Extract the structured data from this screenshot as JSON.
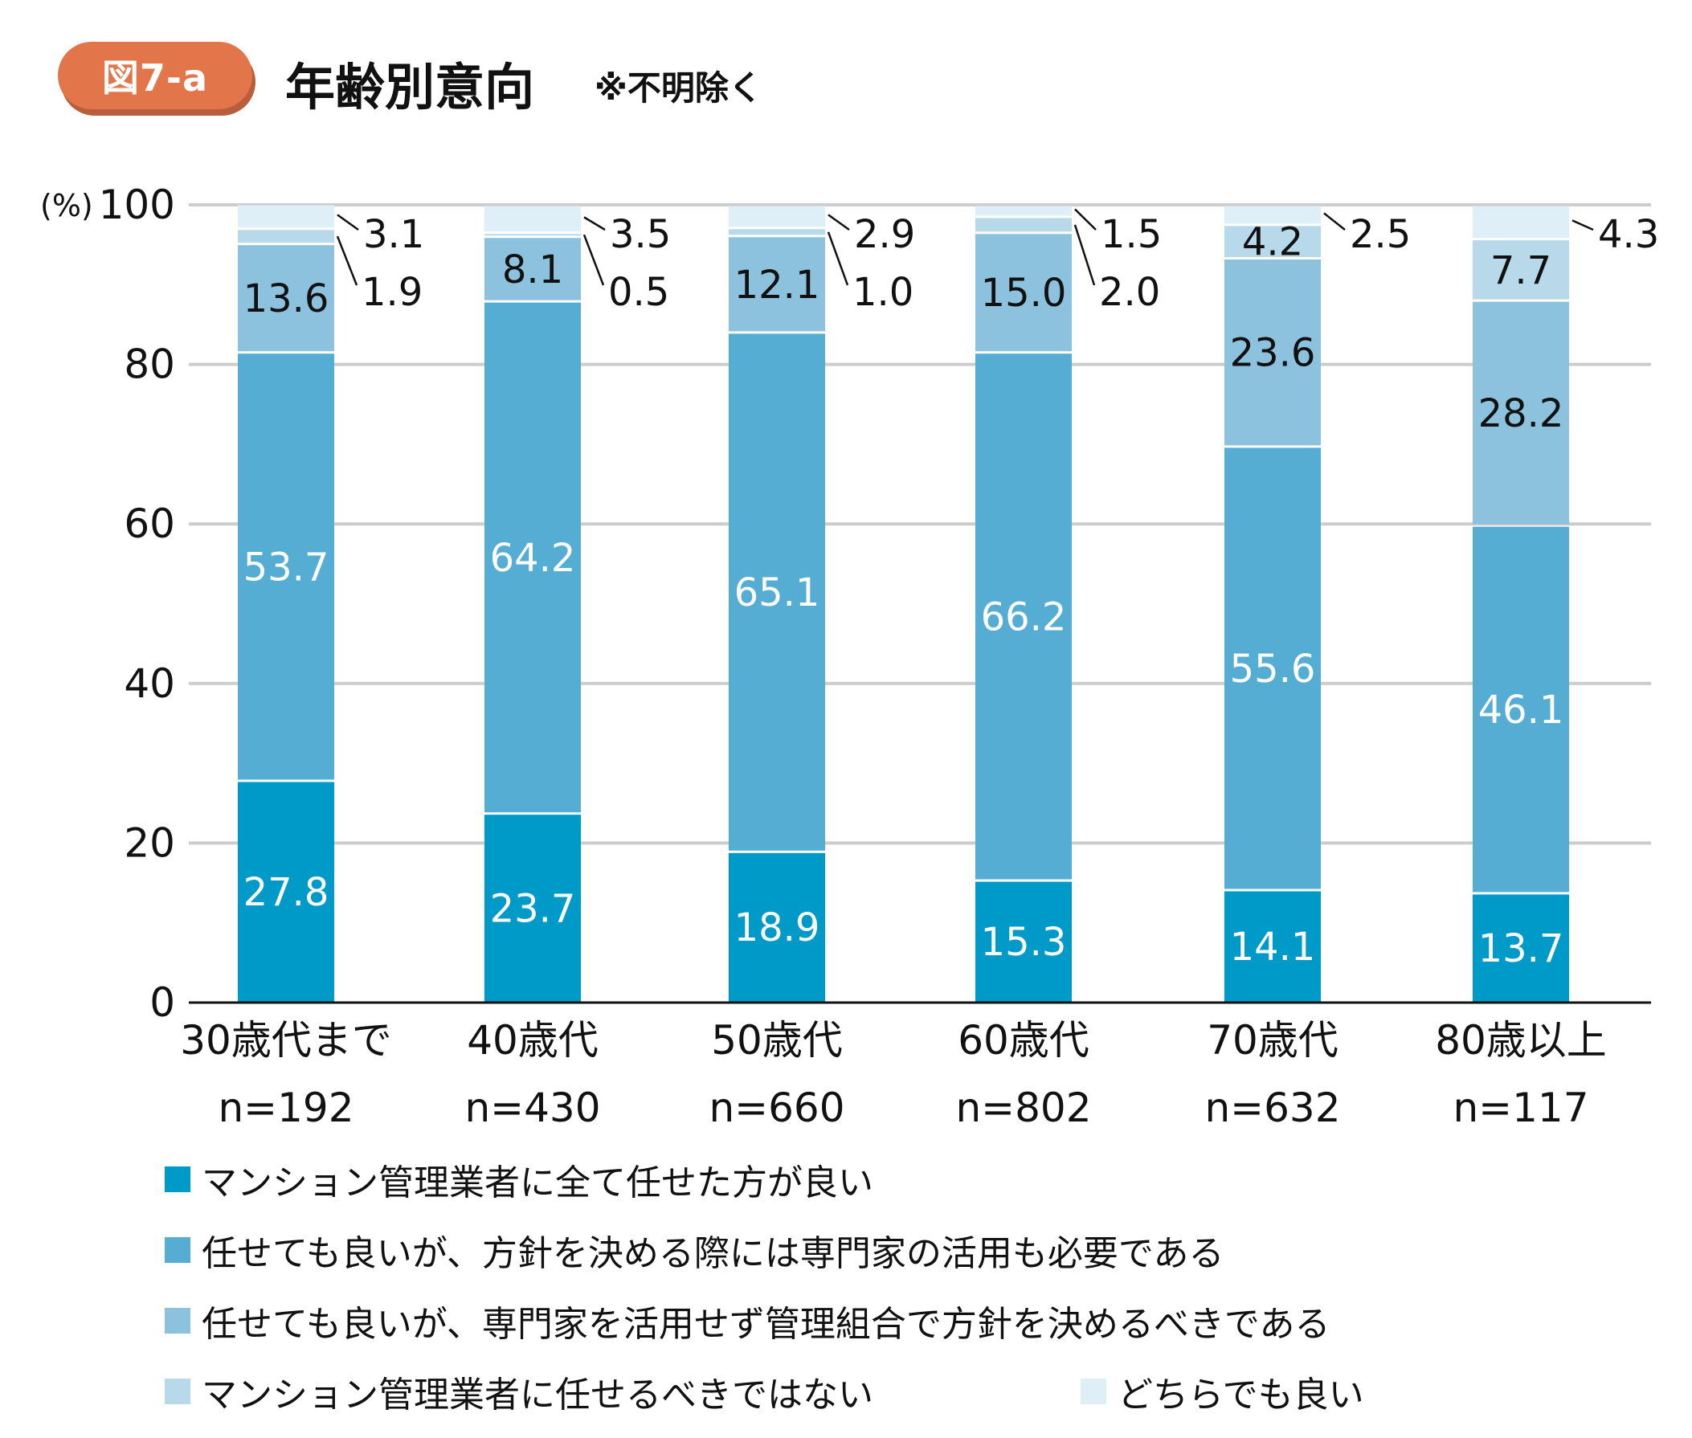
{
  "header": {
    "figure_label": "図7-a",
    "title": "年齢別意向",
    "note": "※不明除く"
  },
  "chart_data": {
    "type": "bar",
    "stacked": true,
    "orientation": "vertical",
    "title": "年齢別意向",
    "ylabel": "(%)",
    "ylim": [
      0,
      100
    ],
    "yticks": [
      0,
      20,
      40,
      60,
      80,
      100
    ],
    "grid": true,
    "categories": [
      "30歳代まで",
      "40歳代",
      "50歳代",
      "60歳代",
      "70歳代",
      "80歳以上"
    ],
    "sample_sizes": [
      "n=192",
      "n=430",
      "n=660",
      "n=802",
      "n=632",
      "n=117"
    ],
    "series": [
      {
        "name": "マンション管理業者に全て任せた方が良い",
        "color": "#009ac8",
        "values": [
          27.8,
          23.7,
          18.9,
          15.3,
          14.1,
          13.7
        ]
      },
      {
        "name": "任せても良いが、方針を決める際には専門家の活用も必要である",
        "color": "#56add4",
        "values": [
          53.7,
          64.2,
          65.1,
          66.2,
          55.6,
          46.1
        ]
      },
      {
        "name": "任せても良いが、専門家を活用せず管理組合で方針を決めるべきである",
        "color": "#8cc2de",
        "values": [
          13.6,
          8.1,
          12.1,
          15.0,
          23.6,
          28.2
        ]
      },
      {
        "name": "マンション管理業者に任せるべきではない",
        "color": "#b8d9ea",
        "values": [
          1.9,
          0.5,
          1.0,
          2.0,
          4.2,
          7.7
        ]
      },
      {
        "name": "どちらでも良い",
        "color": "#dfeff7",
        "values": [
          3.1,
          3.5,
          2.9,
          1.5,
          2.5,
          4.3
        ]
      }
    ],
    "legend_position": "bottom"
  }
}
